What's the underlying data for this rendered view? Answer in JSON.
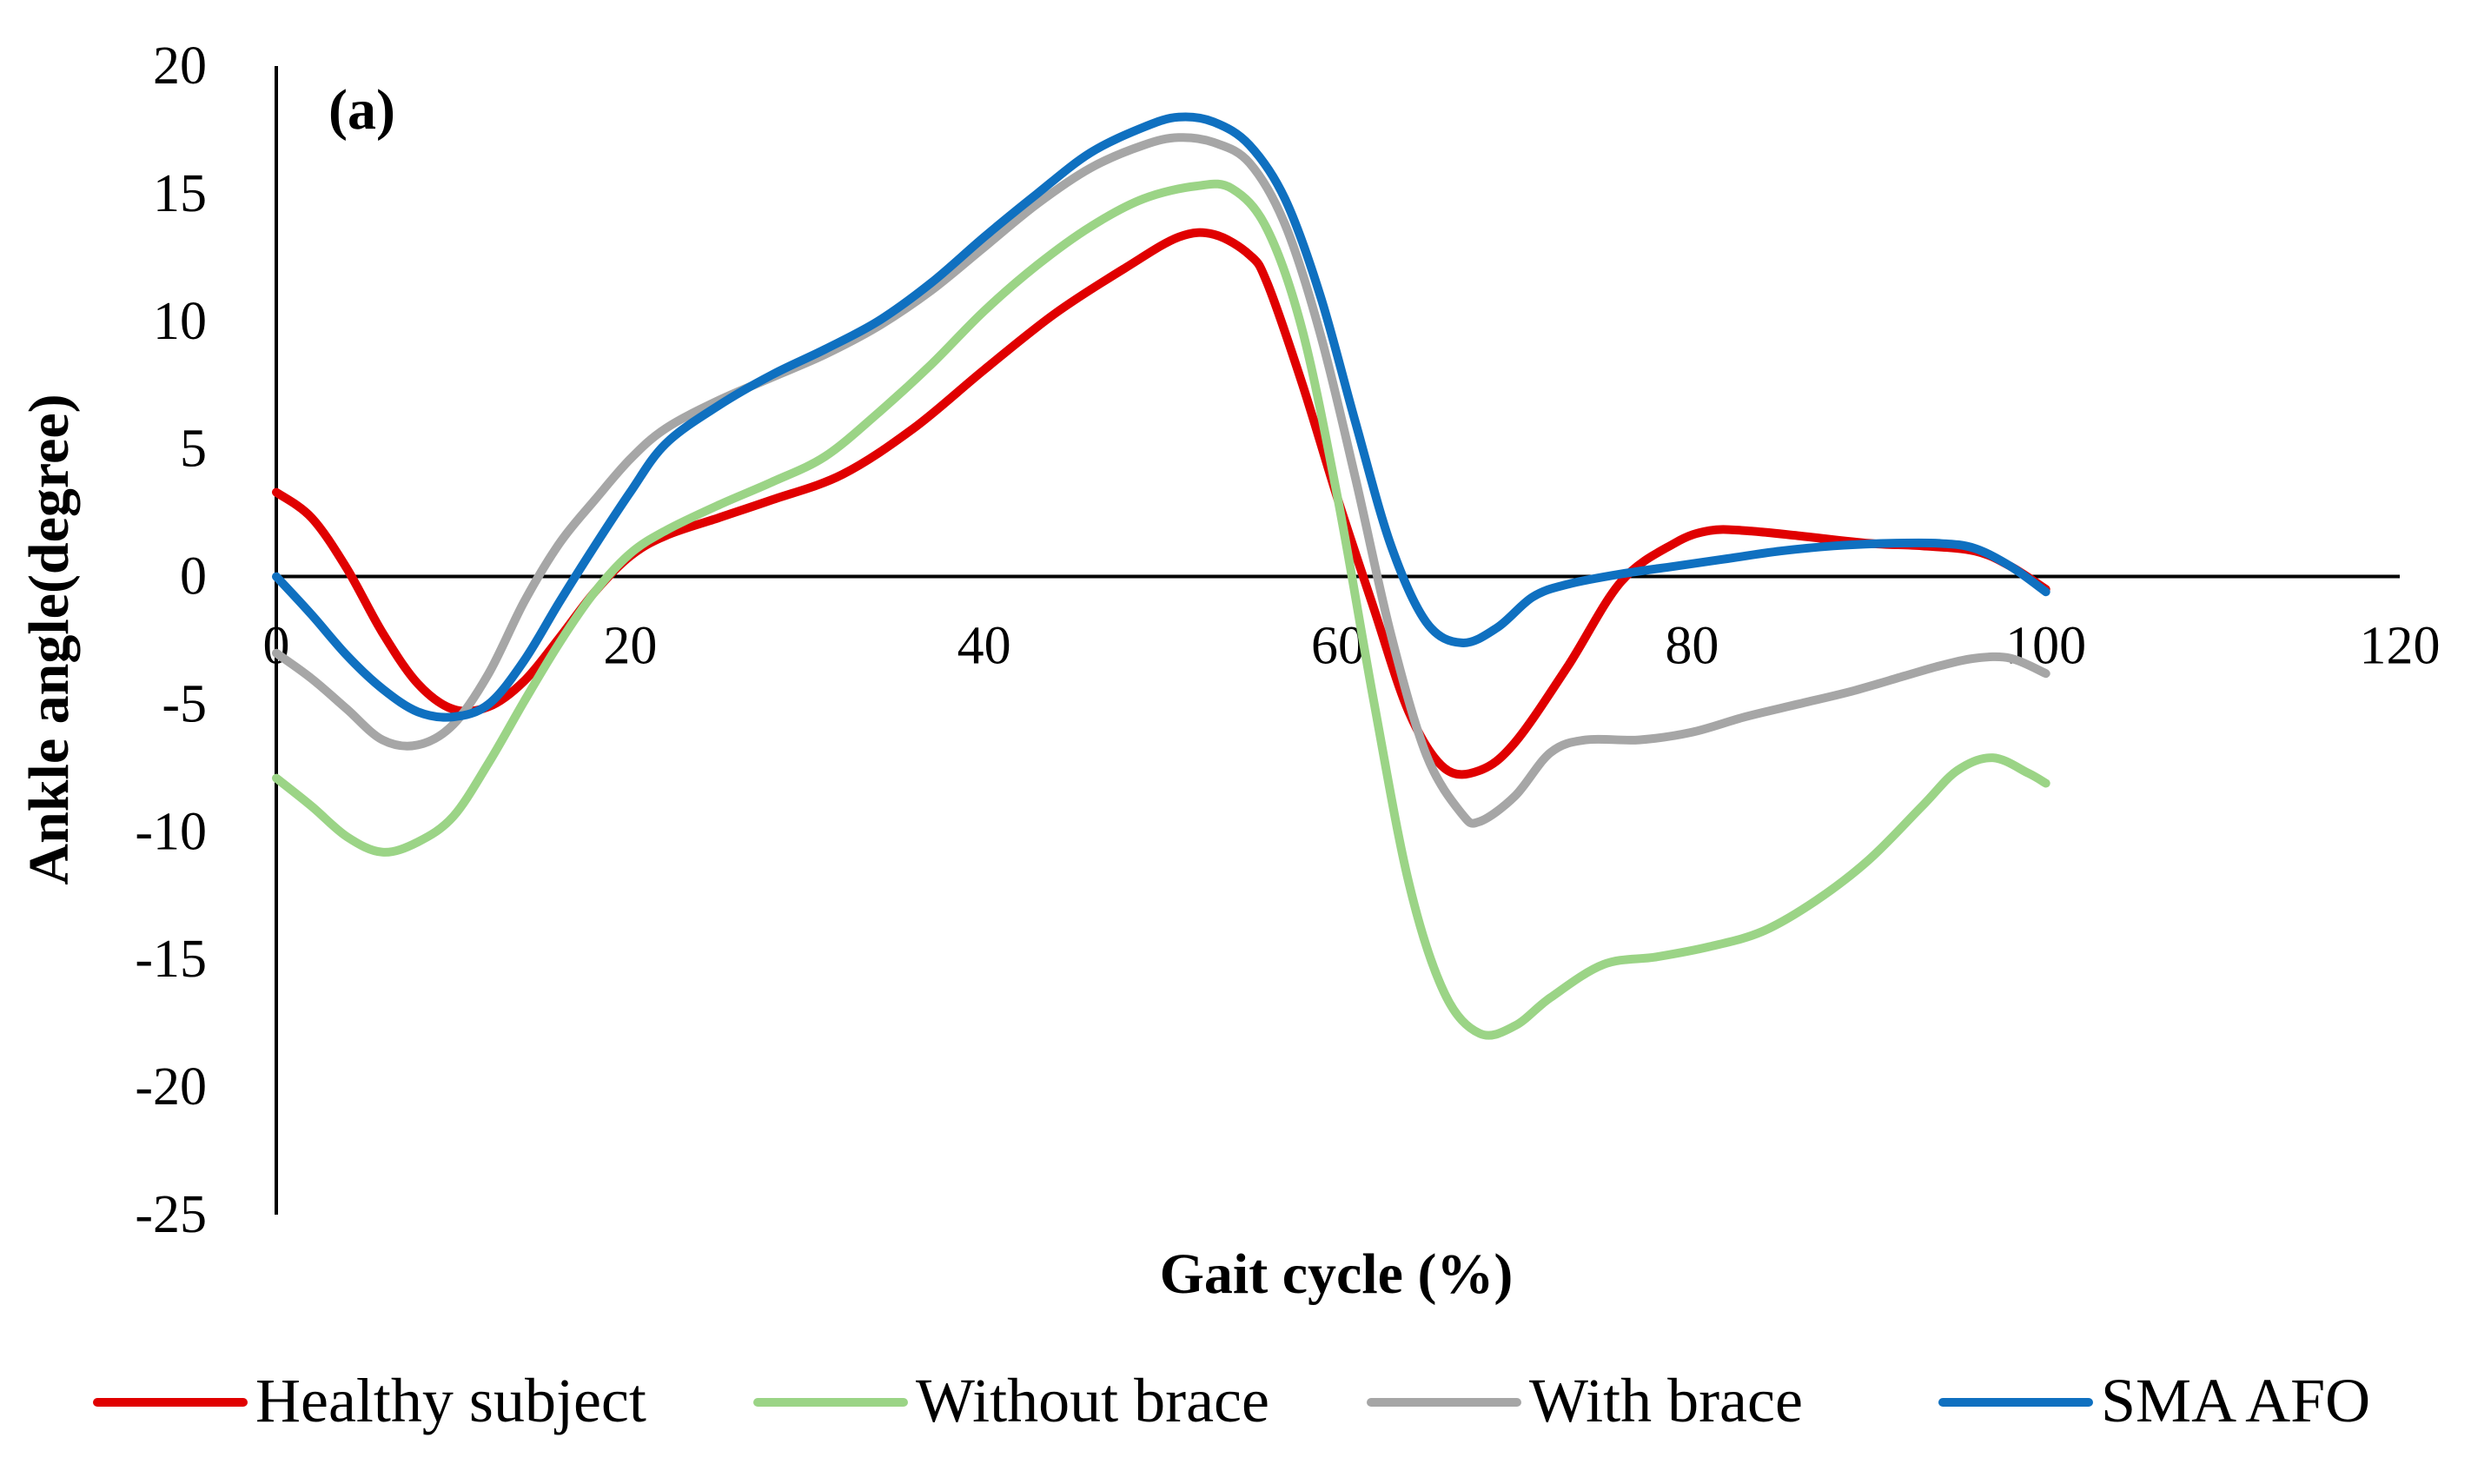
{
  "chart_data": {
    "type": "line",
    "panel_label": "(a)",
    "xlabel": "Gait cycle (%)",
    "ylabel": "Ankle angle(degree)",
    "xlim": [
      0,
      120
    ],
    "ylim": [
      -25,
      20
    ],
    "xticks": [
      0,
      20,
      40,
      60,
      80,
      100,
      120
    ],
    "yticks": [
      20,
      15,
      10,
      5,
      0,
      -5,
      -10,
      -15,
      -20,
      -25
    ],
    "grid": false,
    "legend_position": "bottom",
    "series": [
      {
        "name": "Healthy subject",
        "color": "#e00000",
        "points": [
          [
            0,
            3.3
          ],
          [
            2,
            2.3
          ],
          [
            4,
            0.3
          ],
          [
            6,
            -2.2
          ],
          [
            8,
            -4.2
          ],
          [
            10,
            -5.2
          ],
          [
            12,
            -5.1
          ],
          [
            14,
            -4.1
          ],
          [
            16,
            -2.4
          ],
          [
            18,
            -0.6
          ],
          [
            20,
            0.8
          ],
          [
            22,
            1.6
          ],
          [
            25,
            2.3
          ],
          [
            28,
            3
          ],
          [
            32,
            4
          ],
          [
            36,
            5.8
          ],
          [
            40,
            8.1
          ],
          [
            44,
            10.3
          ],
          [
            48,
            12.1
          ],
          [
            51,
            13.3
          ],
          [
            53,
            13.4
          ],
          [
            55,
            12.6
          ],
          [
            56,
            11.5
          ],
          [
            58,
            7.5
          ],
          [
            60,
            3
          ],
          [
            62,
            -1.2
          ],
          [
            64,
            -5.3
          ],
          [
            66,
            -7.5
          ],
          [
            68,
            -7.6
          ],
          [
            70,
            -6.5
          ],
          [
            73,
            -3.5
          ],
          [
            76,
            -0.2
          ],
          [
            79,
            1.3
          ],
          [
            81,
            1.8
          ],
          [
            83,
            1.8
          ],
          [
            86,
            1.6
          ],
          [
            90,
            1.3
          ],
          [
            93,
            1.2
          ],
          [
            96,
            1
          ],
          [
            98,
            0.4
          ],
          [
            100,
            -0.5
          ]
        ]
      },
      {
        "name": "Without brace",
        "color": "#9bd486",
        "points": [
          [
            0,
            -7.9
          ],
          [
            2,
            -9
          ],
          [
            4,
            -10.2
          ],
          [
            6,
            -10.8
          ],
          [
            8,
            -10.4
          ],
          [
            10,
            -9.4
          ],
          [
            12,
            -7.3
          ],
          [
            14,
            -4.9
          ],
          [
            16,
            -2.6
          ],
          [
            18,
            -0.6
          ],
          [
            20,
            0.9
          ],
          [
            22,
            1.8
          ],
          [
            25,
            2.8
          ],
          [
            28,
            3.7
          ],
          [
            31,
            4.7
          ],
          [
            34,
            6.4
          ],
          [
            37,
            8.3
          ],
          [
            40,
            10.4
          ],
          [
            43,
            12.2
          ],
          [
            46,
            13.7
          ],
          [
            49,
            14.8
          ],
          [
            52,
            15.3
          ],
          [
            54,
            15.2
          ],
          [
            56,
            13.6
          ],
          [
            58,
            9.6
          ],
          [
            60,
            3
          ],
          [
            62,
            -4.8
          ],
          [
            64,
            -12
          ],
          [
            66,
            -16.3
          ],
          [
            68,
            -17.9
          ],
          [
            70,
            -17.6
          ],
          [
            72,
            -16.5
          ],
          [
            75,
            -15.2
          ],
          [
            78,
            -14.9
          ],
          [
            81,
            -14.5
          ],
          [
            84,
            -13.9
          ],
          [
            87,
            -12.7
          ],
          [
            90,
            -11.1
          ],
          [
            93,
            -9
          ],
          [
            95,
            -7.6
          ],
          [
            97,
            -7.1
          ],
          [
            99,
            -7.7
          ],
          [
            100,
            -8.1
          ]
        ]
      },
      {
        "name": "With brace",
        "color": "#a6a6a6",
        "points": [
          [
            0,
            -3
          ],
          [
            2,
            -4
          ],
          [
            4,
            -5.2
          ],
          [
            6,
            -6.4
          ],
          [
            8,
            -6.6
          ],
          [
            10,
            -5.8
          ],
          [
            12,
            -3.8
          ],
          [
            14,
            -1
          ],
          [
            16,
            1.3
          ],
          [
            18,
            3
          ],
          [
            20,
            4.6
          ],
          [
            22,
            5.8
          ],
          [
            25,
            6.9
          ],
          [
            28,
            7.8
          ],
          [
            31,
            8.7
          ],
          [
            34,
            9.8
          ],
          [
            37,
            11.2
          ],
          [
            40,
            12.9
          ],
          [
            43,
            14.6
          ],
          [
            46,
            16
          ],
          [
            49,
            16.9
          ],
          [
            51,
            17.2
          ],
          [
            53,
            17
          ],
          [
            55,
            16.2
          ],
          [
            57,
            13.8
          ],
          [
            59,
            9.5
          ],
          [
            61,
            3.8
          ],
          [
            63,
            -2.3
          ],
          [
            65,
            -7
          ],
          [
            67,
            -9.3
          ],
          [
            68,
            -9.6
          ],
          [
            70,
            -8.6
          ],
          [
            72,
            -6.9
          ],
          [
            74,
            -6.4
          ],
          [
            77,
            -6.4
          ],
          [
            80,
            -6.1
          ],
          [
            83,
            -5.5
          ],
          [
            86,
            -5
          ],
          [
            89,
            -4.5
          ],
          [
            92,
            -3.9
          ],
          [
            94,
            -3.5
          ],
          [
            96,
            -3.2
          ],
          [
            98,
            -3.2
          ],
          [
            100,
            -3.8
          ]
        ]
      },
      {
        "name": "SMA AFO",
        "color": "#0f70c0",
        "points": [
          [
            0,
            0
          ],
          [
            2,
            -1.5
          ],
          [
            4,
            -3.1
          ],
          [
            6,
            -4.4
          ],
          [
            8,
            -5.3
          ],
          [
            10,
            -5.5
          ],
          [
            12,
            -5
          ],
          [
            14,
            -3.3
          ],
          [
            16,
            -1
          ],
          [
            18,
            1.2
          ],
          [
            20,
            3.3
          ],
          [
            22,
            5.2
          ],
          [
            25,
            6.7
          ],
          [
            28,
            7.9
          ],
          [
            31,
            8.9
          ],
          [
            34,
            10
          ],
          [
            37,
            11.5
          ],
          [
            40,
            13.3
          ],
          [
            43,
            15
          ],
          [
            46,
            16.6
          ],
          [
            49,
            17.6
          ],
          [
            51,
            18
          ],
          [
            53,
            17.8
          ],
          [
            55,
            16.9
          ],
          [
            57,
            14.8
          ],
          [
            59,
            11
          ],
          [
            61,
            6
          ],
          [
            63,
            1.2
          ],
          [
            65,
            -1.8
          ],
          [
            67,
            -2.6
          ],
          [
            69,
            -2
          ],
          [
            71,
            -0.8
          ],
          [
            73,
            -0.3
          ],
          [
            76,
            0.1
          ],
          [
            79,
            0.4
          ],
          [
            82,
            0.7
          ],
          [
            85,
            1
          ],
          [
            88,
            1.2
          ],
          [
            91,
            1.3
          ],
          [
            94,
            1.3
          ],
          [
            96,
            1.1
          ],
          [
            98,
            0.4
          ],
          [
            100,
            -0.6
          ]
        ]
      }
    ]
  }
}
